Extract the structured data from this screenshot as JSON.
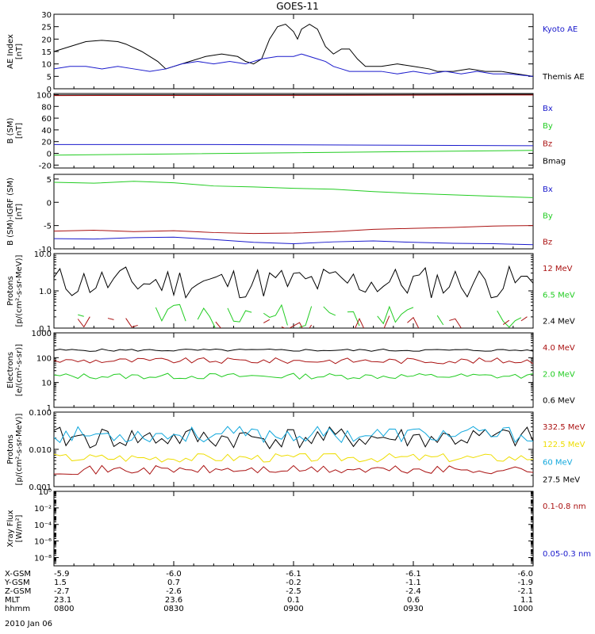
{
  "title": "GOES-11",
  "date_label": "2010 Jan 06",
  "colors": {
    "black": "#000000",
    "blue": "#1a1acc",
    "green": "#22cc22",
    "red": "#aa1111",
    "cyan": "#11a8dd",
    "yellow": "#eedd00"
  },
  "orbit": {
    "rows": [
      {
        "label": "X-GSM",
        "values": [
          "-5.9",
          "-6.0",
          "-6.1",
          "-6.1",
          "-6.0"
        ]
      },
      {
        "label": "Y-GSM",
        "values": [
          "1.5",
          "0.7",
          "-0.2",
          "-1.1",
          "-1.9"
        ]
      },
      {
        "label": "Z-GSM",
        "values": [
          "-2.7",
          "-2.6",
          "-2.5",
          "-2.4",
          "-2.1"
        ]
      },
      {
        "label": "MLT",
        "values": [
          "23.1",
          "23.6",
          "0.1",
          "0.6",
          "1.1"
        ]
      },
      {
        "label": "hhmm",
        "values": [
          "0800",
          "0830",
          "0900",
          "0930",
          "1000"
        ]
      }
    ]
  },
  "chart_data": [
    {
      "type": "line",
      "ylabel": "AE Index\n[nT]",
      "yscale": "linear",
      "ylim": [
        0,
        30
      ],
      "yticks": [
        "0",
        "5",
        "10",
        "15",
        "20",
        "25",
        "30"
      ],
      "xlim": [
        0,
        120
      ],
      "legend": [
        "Kyoto AE",
        "Themis AE"
      ],
      "legend_colors": [
        "blue",
        "black"
      ],
      "series": [
        {
          "name": "Themis AE",
          "color": "black",
          "points": [
            [
              0,
              15
            ],
            [
              4,
              17
            ],
            [
              8,
              19
            ],
            [
              12,
              19.5
            ],
            [
              16,
              19
            ],
            [
              18,
              18
            ],
            [
              22,
              15
            ],
            [
              26,
              11
            ],
            [
              28,
              8
            ],
            [
              30,
              9
            ],
            [
              34,
              11
            ],
            [
              38,
              13
            ],
            [
              42,
              14
            ],
            [
              46,
              13
            ],
            [
              48,
              11
            ],
            [
              50,
              10
            ],
            [
              52,
              12
            ],
            [
              54,
              20
            ],
            [
              56,
              25
            ],
            [
              58,
              26
            ],
            [
              60,
              23
            ],
            [
              61,
              20
            ],
            [
              62,
              24
            ],
            [
              64,
              26
            ],
            [
              66,
              24
            ],
            [
              68,
              17
            ],
            [
              70,
              14
            ],
            [
              72,
              16
            ],
            [
              74,
              16
            ],
            [
              76,
              12
            ],
            [
              78,
              9
            ],
            [
              82,
              9
            ],
            [
              86,
              10
            ],
            [
              90,
              9
            ],
            [
              94,
              8
            ],
            [
              96,
              7
            ],
            [
              100,
              7
            ],
            [
              104,
              8
            ],
            [
              108,
              7
            ],
            [
              112,
              7
            ],
            [
              116,
              6
            ],
            [
              120,
              5
            ]
          ]
        },
        {
          "name": "Kyoto AE",
          "color": "blue",
          "points": [
            [
              0,
              8
            ],
            [
              4,
              9
            ],
            [
              8,
              9
            ],
            [
              12,
              8
            ],
            [
              16,
              9
            ],
            [
              20,
              8
            ],
            [
              24,
              7
            ],
            [
              28,
              8
            ],
            [
              32,
              10
            ],
            [
              36,
              11
            ],
            [
              40,
              10
            ],
            [
              44,
              11
            ],
            [
              48,
              10
            ],
            [
              52,
              12
            ],
            [
              56,
              13
            ],
            [
              60,
              13
            ],
            [
              62,
              14
            ],
            [
              64,
              13
            ],
            [
              66,
              12
            ],
            [
              68,
              11
            ],
            [
              70,
              9
            ],
            [
              72,
              8
            ],
            [
              74,
              7
            ],
            [
              78,
              7
            ],
            [
              82,
              7
            ],
            [
              86,
              6
            ],
            [
              90,
              7
            ],
            [
              94,
              6
            ],
            [
              98,
              7
            ],
            [
              102,
              6
            ],
            [
              106,
              7
            ],
            [
              110,
              6
            ],
            [
              114,
              6
            ],
            [
              120,
              5
            ]
          ]
        }
      ]
    },
    {
      "type": "line",
      "ylabel": "B (SM)\n[nT]",
      "yscale": "linear",
      "ylim": [
        -25,
        102
      ],
      "yticks": [
        "-20",
        "0",
        "20",
        "40",
        "60",
        "80",
        "100"
      ],
      "xlim": [
        0,
        120
      ],
      "legend": [
        "Bx",
        "By",
        "Bz",
        "Bmag"
      ],
      "legend_colors": [
        "blue",
        "green",
        "red",
        "black"
      ],
      "series": [
        {
          "name": "Bmag",
          "color": "black",
          "points": [
            [
              0,
              99.5
            ],
            [
              60,
              99.8
            ],
            [
              120,
              100.5
            ]
          ]
        },
        {
          "name": "Bz",
          "color": "red",
          "points": [
            [
              0,
              98.5
            ],
            [
              60,
              98.8
            ],
            [
              120,
              99.5
            ]
          ]
        },
        {
          "name": "Bx",
          "color": "blue",
          "points": [
            [
              0,
              15
            ],
            [
              40,
              15
            ],
            [
              80,
              14
            ],
            [
              120,
              13
            ]
          ]
        },
        {
          "name": "By",
          "color": "green",
          "points": [
            [
              0,
              -3
            ],
            [
              30,
              -1
            ],
            [
              60,
              1
            ],
            [
              90,
              3
            ],
            [
              120,
              5
            ]
          ]
        }
      ]
    },
    {
      "type": "line",
      "ylabel": "B (SM)-IGRF (SM)\n[nT]",
      "yscale": "linear",
      "ylim": [
        -10,
        6
      ],
      "yticks": [
        "-10",
        "-5",
        "0",
        "5"
      ],
      "xlim": [
        0,
        120
      ],
      "legend": [
        "Bx",
        "By",
        "Bz"
      ],
      "legend_colors": [
        "blue",
        "green",
        "red"
      ],
      "series": [
        {
          "name": "By",
          "color": "green",
          "points": [
            [
              0,
              4.3
            ],
            [
              10,
              4.1
            ],
            [
              20,
              4.5
            ],
            [
              30,
              4.2
            ],
            [
              40,
              3.5
            ],
            [
              50,
              3.3
            ],
            [
              60,
              3.0
            ],
            [
              70,
              2.8
            ],
            [
              80,
              2.3
            ],
            [
              90,
              1.9
            ],
            [
              100,
              1.6
            ],
            [
              110,
              1.3
            ],
            [
              120,
              1.0
            ]
          ]
        },
        {
          "name": "Bz",
          "color": "red",
          "points": [
            [
              0,
              -6.2
            ],
            [
              10,
              -6.0
            ],
            [
              20,
              -6.3
            ],
            [
              30,
              -6.1
            ],
            [
              40,
              -6.5
            ],
            [
              50,
              -6.7
            ],
            [
              60,
              -6.6
            ],
            [
              70,
              -6.3
            ],
            [
              80,
              -5.8
            ],
            [
              90,
              -5.6
            ],
            [
              100,
              -5.4
            ],
            [
              110,
              -5.1
            ],
            [
              120,
              -5.0
            ]
          ]
        },
        {
          "name": "Bx",
          "color": "blue",
          "points": [
            [
              0,
              -7.8
            ],
            [
              10,
              -7.9
            ],
            [
              20,
              -7.6
            ],
            [
              30,
              -7.5
            ],
            [
              40,
              -8.0
            ],
            [
              50,
              -8.6
            ],
            [
              60,
              -8.9
            ],
            [
              70,
              -8.5
            ],
            [
              80,
              -8.3
            ],
            [
              90,
              -8.6
            ],
            [
              100,
              -8.8
            ],
            [
              110,
              -8.9
            ],
            [
              120,
              -9.1
            ]
          ]
        }
      ]
    },
    {
      "type": "line",
      "ylabel": "Protons\n[p/(cm²-s-sr-MeV)]",
      "yscale": "log",
      "ylim": [
        0.1,
        10
      ],
      "yticks": [
        "0.1",
        "1.0",
        "10.0"
      ],
      "xlim": [
        0,
        120
      ],
      "legend": [
        "12 MeV",
        "6.5 MeV",
        "2.4 MeV"
      ],
      "legend_colors": [
        "red",
        "green",
        "black"
      ],
      "series": [
        {
          "name": "2.4 MeV",
          "color": "black",
          "noisy": true,
          "base": 1.7,
          "spread": 0.45,
          "log": true,
          "seed": 11,
          "points": []
        },
        {
          "name": "6.5 MeV",
          "color": "green",
          "noisy": true,
          "base": 0.2,
          "spread": 0.35,
          "log": true,
          "seed": 23,
          "gappy": true,
          "points": []
        },
        {
          "name": "12 MeV",
          "color": "red",
          "noisy": true,
          "base": 0.12,
          "spread": 0.25,
          "log": true,
          "seed": 37,
          "gappy": true,
          "points": []
        }
      ]
    },
    {
      "type": "line",
      "ylabel": "Electrons\n[e/(cm²-s-sr)]",
      "yscale": "log",
      "ylim": [
        1,
        1000
      ],
      "yticks": [
        "1",
        "10",
        "100",
        "1000"
      ],
      "xlim": [
        0,
        120
      ],
      "legend": [
        "4.0 MeV",
        "2.0 MeV",
        "0.6 MeV"
      ],
      "legend_colors": [
        "red",
        "green",
        "black"
      ],
      "series": [
        {
          "name": "0.6 MeV",
          "color": "black",
          "noisy": true,
          "base": 200,
          "spread": 0.05,
          "log": true,
          "seed": 5,
          "points": []
        },
        {
          "name": "4.0 MeV",
          "color": "red",
          "noisy": true,
          "base": 75,
          "spread": 0.12,
          "log": true,
          "seed": 9,
          "points": []
        },
        {
          "name": "2.0 MeV",
          "color": "green",
          "noisy": true,
          "base": 18,
          "spread": 0.12,
          "log": true,
          "seed": 13,
          "points": []
        }
      ]
    },
    {
      "type": "line",
      "ylabel": "Protons\n[p/(cm²-s-sr-MeV)]",
      "yscale": "log",
      "ylim": [
        0.001,
        0.1
      ],
      "yticks": [
        "0.001",
        "0.010",
        "0.100"
      ],
      "xlim": [
        0,
        120
      ],
      "legend": [
        "332.5 MeV",
        "122.5 MeV",
        "60 MeV",
        "27.5 MeV"
      ],
      "legend_colors": [
        "red",
        "yellow",
        "cyan",
        "black"
      ],
      "series": [
        {
          "name": "27.5 MeV",
          "color": "black",
          "noisy": true,
          "base": 0.02,
          "spread": 0.3,
          "log": true,
          "seed": 41,
          "points": []
        },
        {
          "name": "60 MeV",
          "color": "cyan",
          "noisy": true,
          "base": 0.025,
          "spread": 0.22,
          "log": true,
          "seed": 53,
          "points": []
        },
        {
          "name": "122.5 MeV",
          "color": "yellow",
          "noisy": true,
          "base": 0.006,
          "spread": 0.12,
          "log": true,
          "seed": 67,
          "points": []
        },
        {
          "name": "332.5 MeV",
          "color": "red",
          "noisy": true,
          "base": 0.0028,
          "spread": 0.12,
          "log": true,
          "seed": 71,
          "points": []
        }
      ]
    },
    {
      "type": "line",
      "ylabel": "Xray Flux\n[W/m²]",
      "yscale": "log",
      "ylim": [
        1e-09,
        1
      ],
      "yticks": [
        "10⁻⁸",
        "10⁻⁶",
        "10⁻⁴",
        "10⁻²",
        "10⁰"
      ],
      "xlim": [
        0,
        120
      ],
      "legend": [
        "0.1-0.8 nm",
        "0.05-0.3 nm"
      ],
      "legend_colors": [
        "red",
        "blue"
      ],
      "series": []
    }
  ]
}
